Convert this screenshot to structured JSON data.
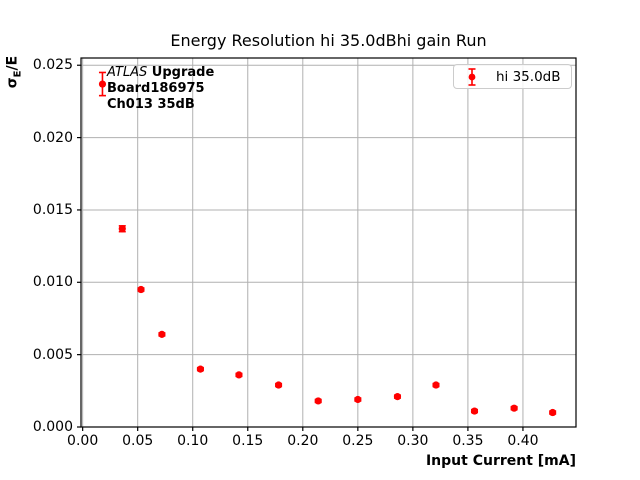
{
  "figure": {
    "title": "Energy Resolution hi 35.0dBhi gain Run",
    "xlabel": "Input Current [mA]",
    "ylabel": {
      "sigma": "σ",
      "sub": "E",
      "rest": "/E"
    },
    "annotation": {
      "line1_italic": "ATLAS",
      "line1_bold": " Upgrade",
      "line2": "Board186975",
      "line3": "Ch013 35dB"
    },
    "legend": {
      "label": "hi 35.0dB"
    }
  },
  "chart_data": {
    "type": "scatter",
    "title": "Energy Resolution hi 35.0dBhi gain Run",
    "xlabel": "Input Current [mA]",
    "ylabel": "sigma_E/E",
    "grid": true,
    "grid_color": "#b0b0b0",
    "spine_color": "#000000",
    "legend_position": "upper right",
    "xlim": [
      -0.0015,
      0.4482
    ],
    "ylim": [
      0,
      0.0255
    ],
    "xticks": [
      {
        "v": 0.0,
        "label": "0.00"
      },
      {
        "v": 0.05,
        "label": "0.05"
      },
      {
        "v": 0.1,
        "label": "0.10"
      },
      {
        "v": 0.15,
        "label": "0.15"
      },
      {
        "v": 0.2,
        "label": "0.20"
      },
      {
        "v": 0.25,
        "label": "0.25"
      },
      {
        "v": 0.3,
        "label": "0.30"
      },
      {
        "v": 0.35,
        "label": "0.35"
      },
      {
        "v": 0.4,
        "label": "0.40"
      }
    ],
    "yticks": [
      {
        "v": 0.0,
        "label": "0.000"
      },
      {
        "v": 0.005,
        "label": "0.005"
      },
      {
        "v": 0.01,
        "label": "0.010"
      },
      {
        "v": 0.015,
        "label": "0.015"
      },
      {
        "v": 0.02,
        "label": "0.020"
      },
      {
        "v": 0.025,
        "label": "0.025"
      }
    ],
    "series": [
      {
        "name": "hi 35.0dB",
        "color": "#ff0000",
        "x": [
          0.018,
          0.036,
          0.053,
          0.072,
          0.107,
          0.142,
          0.178,
          0.214,
          0.25,
          0.286,
          0.321,
          0.356,
          0.392,
          0.427
        ],
        "y": [
          0.0237,
          0.0137,
          0.0095,
          0.0064,
          0.004,
          0.0036,
          0.0029,
          0.0018,
          0.0019,
          0.0021,
          0.0029,
          0.0011,
          0.0013,
          0.001
        ],
        "yerr": [
          0.0008,
          0.0002,
          0.0001,
          0.0001,
          0.0001,
          0.0001,
          0.0001,
          0.0001,
          0.0001,
          0.0001,
          0.0001,
          0.0001,
          0.0001,
          0.0001
        ]
      }
    ]
  }
}
